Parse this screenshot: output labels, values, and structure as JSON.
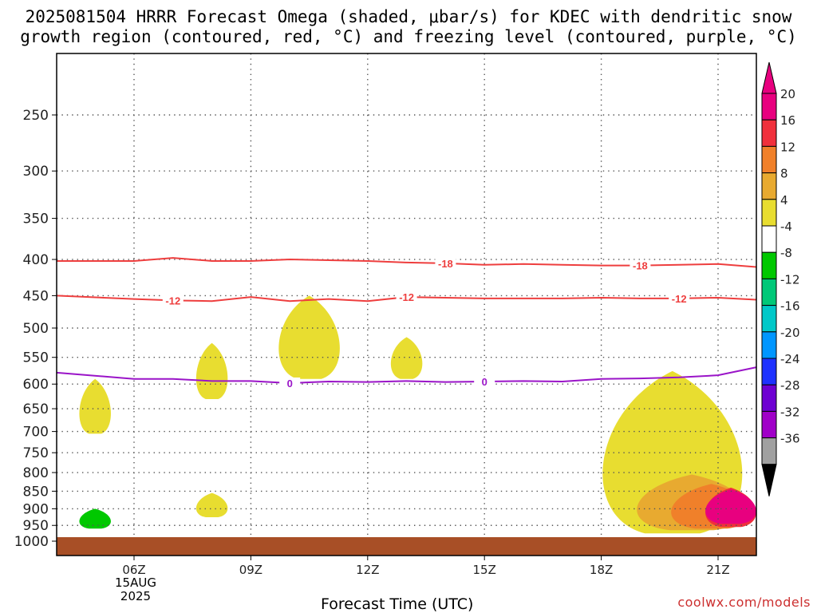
{
  "title_line1": "2025081504 HRRR Forecast Omega (shaded, μbar/s) for KDEC with dendritic snow",
  "title_line2": "growth region (contoured, red, °C) and freezing level (contoured, purple, °C)",
  "x_axis_title": "Forecast Time (UTC)",
  "credit": "coolwx.com/models",
  "date_label": {
    "day": "15AUG",
    "year": "2025"
  },
  "chart_data": {
    "type": "heatmap",
    "x_ticks": [
      "06Z",
      "09Z",
      "12Z",
      "15Z",
      "18Z",
      "21Z"
    ],
    "y_ticks": [
      250,
      300,
      350,
      400,
      450,
      500,
      550,
      600,
      650,
      700,
      750,
      800,
      850,
      900,
      950,
      1000
    ],
    "y_axis": "pressure (hPa), inverted, log-pressure scale",
    "grid": true,
    "colorbar": {
      "labels": [
        "20",
        "16",
        "12",
        "8",
        "4",
        "-4",
        "-8",
        "-12",
        "-16",
        "-20",
        "-24",
        "-28",
        "-32",
        "-36"
      ],
      "colors": [
        "#e8007f",
        "#f0303c",
        "#f0802a",
        "#e8aa30",
        "#e8dd30",
        "#ffffff",
        "#00c800",
        "#00c878",
        "#00c8c8",
        "#0096ff",
        "#1e32ff",
        "#6e00d2",
        "#a000c8",
        "#a0a0a0"
      ],
      "over_color": "#e8007f",
      "under_color": "#000000"
    },
    "contours": [
      {
        "color": "#ee3e3e",
        "label": "-18",
        "points": [
          [
            "05Z",
            402
          ],
          [
            "06Z",
            402
          ],
          [
            "07Z",
            398
          ],
          [
            "08Z",
            402
          ],
          [
            "09Z",
            402
          ],
          [
            "10Z",
            400
          ],
          [
            "11Z",
            401
          ],
          [
            "12Z",
            402
          ],
          [
            "13Z",
            404
          ],
          [
            "14Z",
            405
          ],
          [
            "15Z",
            407
          ],
          [
            "16Z",
            406
          ],
          [
            "17Z",
            407
          ],
          [
            "18Z",
            408
          ],
          [
            "19Z",
            408
          ],
          [
            "20Z",
            407
          ],
          [
            "21Z",
            406
          ],
          [
            "22Z",
            410
          ]
        ]
      },
      {
        "color": "#ee3e3e",
        "label": "-12",
        "points": [
          [
            "05Z",
            450
          ],
          [
            "06Z",
            455
          ],
          [
            "07Z",
            457
          ],
          [
            "08Z",
            458
          ],
          [
            "09Z",
            452
          ],
          [
            "10Z",
            458
          ],
          [
            "11Z",
            455
          ],
          [
            "12Z",
            458
          ],
          [
            "13Z",
            452
          ],
          [
            "14Z",
            453
          ],
          [
            "15Z",
            454
          ],
          [
            "16Z",
            454
          ],
          [
            "17Z",
            454
          ],
          [
            "18Z",
            453
          ],
          [
            "19Z",
            454
          ],
          [
            "20Z",
            454
          ],
          [
            "21Z",
            453
          ],
          [
            "22Z",
            456
          ]
        ]
      },
      {
        "color": "#9a14c8",
        "label": "0",
        "points": [
          [
            "05Z",
            578
          ],
          [
            "06Z",
            590
          ],
          [
            "07Z",
            590
          ],
          [
            "08Z",
            594
          ],
          [
            "09Z",
            594
          ],
          [
            "10Z",
            598
          ],
          [
            "11Z",
            595
          ],
          [
            "12Z",
            596
          ],
          [
            "13Z",
            594
          ],
          [
            "14Z",
            596
          ],
          [
            "15Z",
            595
          ],
          [
            "16Z",
            594
          ],
          [
            "17Z",
            595
          ],
          [
            "18Z",
            590
          ],
          [
            "19Z",
            589
          ],
          [
            "20Z",
            587
          ],
          [
            "21Z",
            583
          ],
          [
            "22Z",
            568
          ]
        ]
      }
    ],
    "shaded_regions": [
      {
        "value": "4",
        "times": [
          "05Z"
        ],
        "p_range": [
          590,
          705
        ]
      },
      {
        "value": "-4",
        "times": [
          "05Z"
        ],
        "p_range": [
          852,
          965
        ]
      },
      {
        "value": "-8",
        "times": [
          "05Z"
        ],
        "p_range": [
          900,
          960
        ]
      },
      {
        "value": "4",
        "times": [
          "08Z"
        ],
        "p_range": [
          525,
          630
        ]
      },
      {
        "value": "4",
        "times": [
          "08Z"
        ],
        "p_range": [
          855,
          925
        ]
      },
      {
        "value": "-4",
        "times": [
          "10Z"
        ],
        "p_range": [
          360,
          390
        ]
      },
      {
        "value": "4",
        "times": [
          "10Z",
          "11Z"
        ],
        "p_range": [
          450,
          590
        ]
      },
      {
        "value": "4",
        "times": [
          "13Z"
        ],
        "p_range": [
          515,
          590
        ]
      },
      {
        "value": "4",
        "times": [
          "18Z",
          "22Z"
        ],
        "p_range": [
          575,
          975
        ]
      },
      {
        "value": "8",
        "times": [
          "19Z",
          "22Z"
        ],
        "p_range": [
          805,
          965
        ]
      },
      {
        "value": "12",
        "times": [
          "20Z",
          "22Z"
        ],
        "p_range": [
          830,
          960
        ]
      },
      {
        "value": "16",
        "times": [
          "21Z",
          "22Z"
        ],
        "p_range": [
          840,
          955
        ]
      },
      {
        "value": "20",
        "times": [
          "21Z",
          "22Z"
        ],
        "p_range": [
          845,
          945
        ]
      }
    ]
  }
}
